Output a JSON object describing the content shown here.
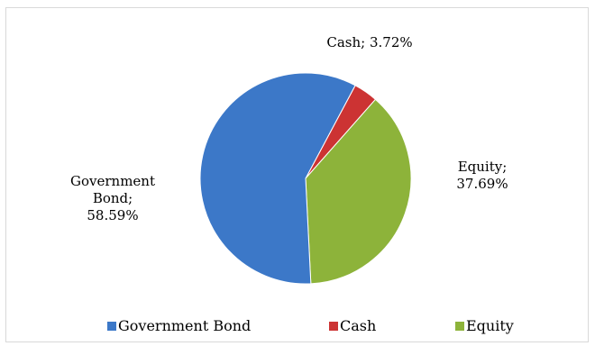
{
  "chart_data": {
    "type": "pie",
    "title": "",
    "slices": [
      {
        "name": "Cash",
        "value": 3.72,
        "color": "#cc3333",
        "label_lines": [
          "Cash; 3.72%"
        ]
      },
      {
        "name": "Equity",
        "value": 37.69,
        "color": "#8db33a",
        "label_lines": [
          "Equity;",
          "37.69%"
        ]
      },
      {
        "name": "Government Bond",
        "value": 58.59,
        "color": "#3c78c8",
        "label_lines": [
          "Government",
          "Bond;",
          "58.59%"
        ]
      }
    ],
    "legend": {
      "placement": "bottom",
      "items": [
        "Government Bond",
        "Cash",
        "Equity"
      ]
    }
  }
}
